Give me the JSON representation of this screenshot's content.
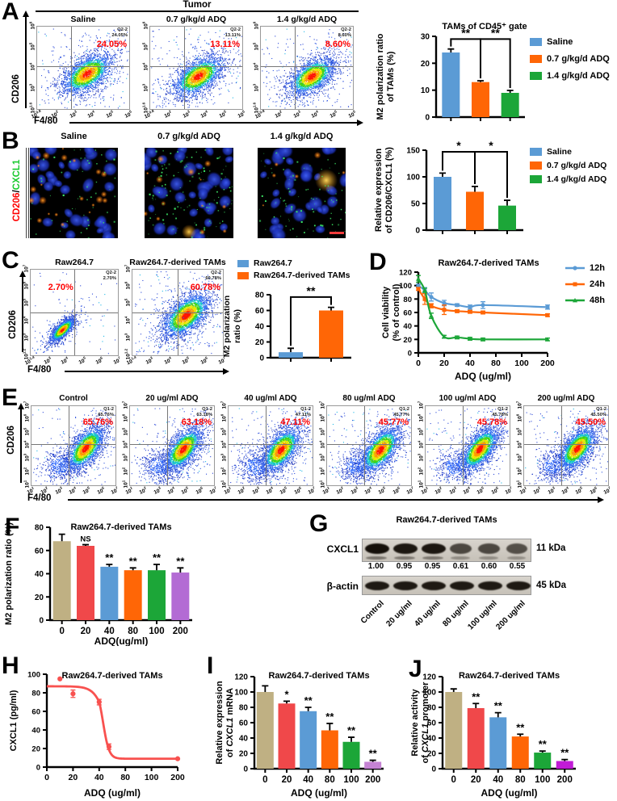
{
  "colors": {
    "blue": "#5B9BD5",
    "orange": "#FF6606",
    "green": "#1CA638",
    "tan": "#BFB083",
    "red": "#F0484A",
    "purple": "#B36BD4",
    "plum": "#C583D3",
    "magenta": "#C11BD6",
    "coral": "#F8514F",
    "pct_red": "#FF0000"
  },
  "panelA": {
    "letter": "A",
    "header": "Tumor",
    "xlabel": "F4/80",
    "ylabel": "CD206",
    "xticks": [
      "10^0.8",
      "10^2",
      "10^3",
      "10^4",
      "10^5",
      "10^5"
    ],
    "yticks": [
      "10^1.6",
      "10^3",
      "10^4",
      "10^5",
      "10^6"
    ],
    "plots": [
      {
        "title": "Saline",
        "quad": "Q2-2",
        "pct": "24.05%"
      },
      {
        "title": "0.7 g/kg/d ADQ",
        "quad": "Q2-2",
        "pct": "13.11%"
      },
      {
        "title": "1.4 g/kg/d ADQ",
        "quad": "Q2-2",
        "pct": "8.60%"
      }
    ]
  },
  "panelB": {
    "letter": "B",
    "ylabel_red": "CD206",
    "ylabel_sep": "/",
    "ylabel_green": "CXCL1",
    "images": [
      {
        "title": "Saline"
      },
      {
        "title": "0.7 g/kg/d ADQ"
      },
      {
        "title": "1.4 g/kg/d ADQ"
      }
    ]
  },
  "panelC": {
    "letter": "C",
    "xlabel": "F4/80",
    "ylabel": "CD206",
    "xticks": [
      "10^1.4",
      "10^3",
      "10^4",
      "10^5",
      "10^6",
      "10^7"
    ],
    "yticks": [
      "10^1.2",
      "10^3",
      "10^4",
      "10^5",
      "10^6",
      "10^7"
    ],
    "plots": [
      {
        "title": "Raw264.7",
        "quad": "Q2-2",
        "pct": "2.70%",
        "pct_left": "20%"
      },
      {
        "title": "Raw264.7-derived TAMs",
        "quad": "Q2-2",
        "pct": "60.78%"
      }
    ]
  },
  "panelD": {
    "letter": "D"
  },
  "panelE": {
    "letter": "E",
    "xlabel": "F4/80",
    "ylabel": "CD206",
    "xticks": [
      "10^1",
      "10^2",
      "10^3",
      "10^4",
      "10^5",
      "10^6",
      "10^7"
    ],
    "yticks": [
      "10^1",
      "10^2",
      "10^3",
      "10^4",
      "10^5",
      "10^6",
      "10^7"
    ],
    "plots": [
      {
        "title": "Control",
        "quad": "Q1-2",
        "pct": "65.76%"
      },
      {
        "title": "20 ug/ml ADQ",
        "quad": "Q1-2",
        "pct": "63.18%"
      },
      {
        "title": "40 ug/ml ADQ",
        "quad": "Q1-2",
        "pct": "47.11%"
      },
      {
        "title": "80 ug/ml ADQ",
        "quad": "Q1-2",
        "pct": "45.77%"
      },
      {
        "title": "100 ug/ml ADQ",
        "quad": "Q1-2",
        "pct": "45.78%"
      },
      {
        "title": "200 ug/ml ADQ",
        "quad": "Q1-2",
        "pct": "45.50%"
      }
    ]
  },
  "panelF": {
    "letter": "F"
  },
  "panelG": {
    "letter": "G",
    "title": "Raw264.7-derived TAMs",
    "rows": [
      {
        "label": "CXCL1",
        "kda": "11 kDa",
        "values": [
          "1.00",
          "0.95",
          "0.95",
          "0.61",
          "0.60",
          "0.55"
        ],
        "intensities": [
          1.0,
          0.95,
          0.95,
          0.61,
          0.6,
          0.55
        ]
      },
      {
        "label": "β-actin",
        "kda": "45 kDa",
        "intensities": [
          1,
          1,
          1,
          1,
          1,
          1
        ]
      }
    ],
    "lanes": [
      "Control",
      "20 ug/ml",
      "40 ug/ml",
      "80 ug/ml",
      "100 ug/ml",
      "200 ug/ml"
    ]
  },
  "panelH": {
    "letter": "H"
  },
  "panelI": {
    "letter": "I"
  },
  "panelJ": {
    "letter": "J"
  },
  "chart_data": [
    {
      "id": "A_bar",
      "type": "bar",
      "title": "TAMs of CD45⁺ gate",
      "ylabel": [
        "M2 polarization ratio",
        "of TAMs (%)"
      ],
      "categories": [
        "Saline",
        "0.7 g/kg/d ADQ",
        "1.4 g/kg/d ADQ"
      ],
      "values": [
        24,
        13,
        9
      ],
      "errors": [
        1.3,
        0.5,
        0.9
      ],
      "bar_colors": [
        "blue",
        "orange",
        "green"
      ],
      "ylim": [
        0,
        30
      ],
      "yticks": [
        0,
        10,
        20,
        30
      ],
      "legend": [
        "Saline",
        "0.7 g/kg/d ADQ",
        "1.4 g/kg/d ADQ"
      ],
      "legend_colors": [
        "blue",
        "orange",
        "green"
      ],
      "brackets": [
        {
          "i1": 0,
          "i2": 1,
          "label": "**",
          "h": 29
        },
        {
          "i1": 1,
          "i2": 2,
          "label": "**",
          "h": 29
        }
      ]
    },
    {
      "id": "B_bar",
      "type": "bar",
      "ylabel": [
        "Relative expression",
        "of CD206/CXCL1 (%)"
      ],
      "categories": [
        "Saline",
        "0.7 g/kg/d ADQ",
        "1.4 g/kg/d ADQ"
      ],
      "values": [
        100,
        72,
        46
      ],
      "errors": [
        7,
        10,
        10
      ],
      "bar_colors": [
        "blue",
        "orange",
        "green"
      ],
      "ylim": [
        0,
        150
      ],
      "yticks": [
        0,
        50,
        100,
        150
      ],
      "legend": [
        "Saline",
        "0.7 g/kg/d ADQ",
        "1.4 g/kg/d ADQ"
      ],
      "legend_colors": [
        "blue",
        "orange",
        "green"
      ],
      "brackets": [
        {
          "i1": 0,
          "i2": 1,
          "label": "*",
          "h": 147
        },
        {
          "i1": 1,
          "i2": 2,
          "label": "*",
          "h": 147
        }
      ]
    },
    {
      "id": "C_bar",
      "type": "bar",
      "ylabel": [
        "M2 polarization",
        "ratio (%)"
      ],
      "categories": [
        "Raw264.7",
        "Raw264.7-derived TAMs"
      ],
      "values": [
        7,
        60
      ],
      "errors": [
        5,
        4
      ],
      "bar_colors": [
        "blue",
        "orange"
      ],
      "ylim": [
        0,
        80
      ],
      "yticks": [
        0,
        20,
        40,
        60,
        80
      ],
      "legend": [
        "Raw264.7",
        "Raw264.7-derived TAMs"
      ],
      "legend_colors": [
        "blue",
        "orange"
      ],
      "brackets": [
        {
          "i1": 0,
          "i2": 1,
          "label": "**",
          "h": 77
        }
      ]
    },
    {
      "id": "D_line",
      "type": "line",
      "title": "Raw264.7-derived TAMs",
      "ylabel": [
        "Cell viability",
        "(% of control)"
      ],
      "xlabel": "ADQ (ug/ml)",
      "xticks": [
        0,
        20,
        40,
        80,
        100,
        200
      ],
      "ylim": [
        0,
        120
      ],
      "yticks": [
        0,
        20,
        40,
        60,
        80,
        100,
        120
      ],
      "legend_position": "right",
      "series": [
        {
          "name": "12h",
          "color": "blue",
          "marker": "circle",
          "x": [
            0,
            5,
            10,
            20,
            30,
            40,
            60,
            200
          ],
          "y": [
            100,
            93,
            83,
            74,
            71,
            68,
            71,
            68
          ],
          "err": [
            2,
            4,
            6,
            4,
            2,
            3,
            5,
            3
          ]
        },
        {
          "name": "24h",
          "color": "orange",
          "marker": "square",
          "x": [
            0,
            5,
            10,
            20,
            30,
            40,
            60,
            200
          ],
          "y": [
            95,
            80,
            70,
            64,
            62,
            61,
            60,
            56
          ],
          "err": [
            2,
            8,
            3,
            7,
            2,
            2,
            2,
            2
          ]
        },
        {
          "name": "48h",
          "color": "green",
          "marker": "triangle",
          "x": [
            0,
            5,
            10,
            20,
            30,
            40,
            60,
            200
          ],
          "y": [
            110,
            93,
            55,
            24,
            23,
            21,
            20,
            20
          ],
          "err": [
            5,
            3,
            4,
            2,
            2,
            2,
            2,
            2
          ]
        }
      ]
    },
    {
      "id": "F_bar",
      "type": "bar",
      "title": "Raw264.7-derived TAMs",
      "ylabel": [
        "M2 polarization ratio (%)"
      ],
      "xlabel": "ADQ(ug/ml)",
      "categories": [
        "0",
        "20",
        "40",
        "80",
        "100",
        "200"
      ],
      "values": [
        68,
        64,
        46,
        43,
        43,
        41
      ],
      "errors": [
        6,
        1,
        2,
        2,
        5,
        4
      ],
      "bar_colors": [
        "tan",
        "red",
        "blue",
        "orange",
        "green",
        "purple"
      ],
      "ylim": [
        0,
        80
      ],
      "yticks": [
        0,
        20,
        40,
        60,
        80
      ],
      "sig": [
        "",
        "NS",
        "**",
        "**",
        "**",
        "**"
      ]
    },
    {
      "id": "H_curve",
      "type": "line",
      "title": "Raw264.7-derived TAMs",
      "ylabel": [
        "CXCL1 (pg/ml)"
      ],
      "xlabel": "ADQ (ug/ml)",
      "xticks": [
        0,
        20,
        40,
        80,
        100,
        200
      ],
      "ylim": [
        0,
        100
      ],
      "yticks": [
        0,
        20,
        40,
        60,
        80,
        100
      ],
      "curve": {
        "top": 87,
        "bottom": 9,
        "ec50": 46,
        "slope": 4.6,
        "color": "coral"
      },
      "points": {
        "x": [
          10,
          20,
          40,
          55,
          200
        ],
        "y": [
          95,
          79,
          70,
          22,
          9
        ],
        "err": [
          0,
          4,
          3,
          3,
          0
        ],
        "color": "coral"
      }
    },
    {
      "id": "I_bar",
      "type": "bar",
      "title": "Raw264.7-derived TAMs",
      "ylabel": [
        "Relative expression",
        "of CXCL1 mRNA"
      ],
      "ylabel_italic": "CXCL1",
      "xlabel": "ADQ (ug/ml)",
      "categories": [
        "0",
        "20",
        "40",
        "80",
        "100",
        "200"
      ],
      "values": [
        100,
        85,
        75,
        50,
        35,
        9
      ],
      "errors": [
        8,
        3,
        5,
        9,
        6,
        2
      ],
      "bar_colors": [
        "tan",
        "red",
        "blue",
        "orange",
        "green",
        "plum"
      ],
      "ylim": [
        0,
        120
      ],
      "yticks": [
        0,
        20,
        40,
        60,
        80,
        100,
        120
      ],
      "sig": [
        "",
        "*",
        "**",
        "**",
        "**",
        "**"
      ]
    },
    {
      "id": "J_bar",
      "type": "bar",
      "title": "Raw264.7-derived TAMs",
      "ylabel": [
        "Relative activity",
        "of CXCL1 promoter"
      ],
      "ylabel_italic": "CXCL1",
      "xlabel": "ADQ (ug/ml)",
      "categories": [
        "0",
        "20",
        "40",
        "80",
        "100",
        "200"
      ],
      "values": [
        100,
        79,
        67,
        42,
        21,
        10
      ],
      "errors": [
        4,
        6,
        6,
        3,
        2,
        2
      ],
      "bar_colors": [
        "tan",
        "red",
        "blue",
        "orange",
        "green",
        "magenta"
      ],
      "ylim": [
        0,
        120
      ],
      "yticks": [
        0,
        20,
        40,
        60,
        80,
        100,
        120
      ],
      "sig": [
        "",
        "**",
        "**",
        "**",
        "**",
        "**"
      ]
    }
  ]
}
